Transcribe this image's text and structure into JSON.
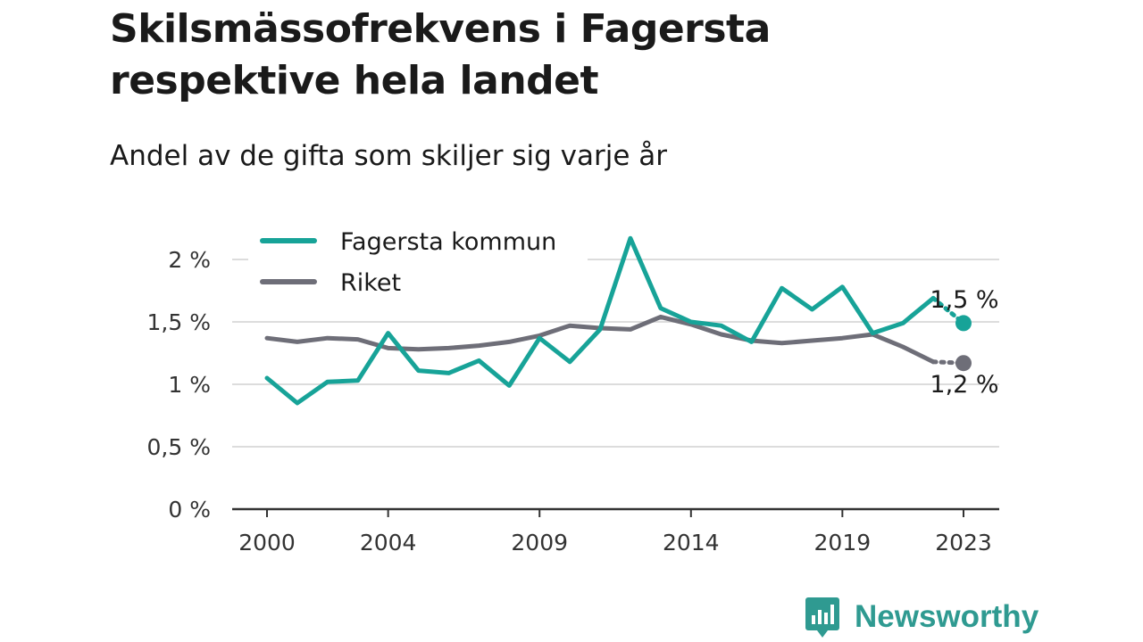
{
  "title": "Skilsmässofrekvens i Fagersta respektive hela landet",
  "subtitle": "Andel av de gifta som skiljer sig varje år",
  "brand": {
    "name": "Newsworthy",
    "icon": "newsworthy-logo-icon",
    "color": "#2f9a91"
  },
  "chart_data": {
    "type": "line",
    "title": "Skilsmässofrekvens i Fagersta respektive hela landet",
    "subtitle": "Andel av de gifta som skiljer sig varje år",
    "xlabel": "",
    "ylabel": "",
    "x": [
      2000,
      2001,
      2002,
      2003,
      2004,
      2005,
      2006,
      2007,
      2008,
      2009,
      2010,
      2011,
      2012,
      2013,
      2014,
      2015,
      2016,
      2017,
      2018,
      2019,
      2020,
      2021,
      2022,
      2023
    ],
    "x_ticks": [
      2000,
      2004,
      2009,
      2014,
      2019,
      2023
    ],
    "x_tick_labels": [
      "2000",
      "2004",
      "2009",
      "2014",
      "2019",
      "2023"
    ],
    "ylim": [
      0,
      2.2
    ],
    "y_ticks": [
      0,
      0.5,
      1,
      1.5,
      2
    ],
    "y_tick_labels": [
      "0 %",
      "0,5 %",
      "1 %",
      "1,5 %",
      "2 %"
    ],
    "grid": true,
    "legend_position": "top-left",
    "series": [
      {
        "name": "Fagersta kommun",
        "color": "#17a398",
        "values": [
          1.05,
          0.85,
          1.02,
          1.03,
          1.41,
          1.11,
          1.09,
          1.19,
          0.99,
          1.37,
          1.18,
          1.44,
          2.17,
          1.61,
          1.5,
          1.47,
          1.34,
          1.77,
          1.6,
          1.78,
          1.41,
          1.49,
          1.69,
          1.49
        ],
        "end_label": "1,5 %"
      },
      {
        "name": "Riket",
        "color": "#6e6e78",
        "values": [
          1.37,
          1.34,
          1.37,
          1.36,
          1.29,
          1.28,
          1.29,
          1.31,
          1.34,
          1.39,
          1.47,
          1.45,
          1.44,
          1.54,
          1.48,
          1.4,
          1.35,
          1.33,
          1.35,
          1.37,
          1.4,
          1.3,
          1.18,
          1.17
        ],
        "end_label": "1,2 %"
      }
    ]
  }
}
